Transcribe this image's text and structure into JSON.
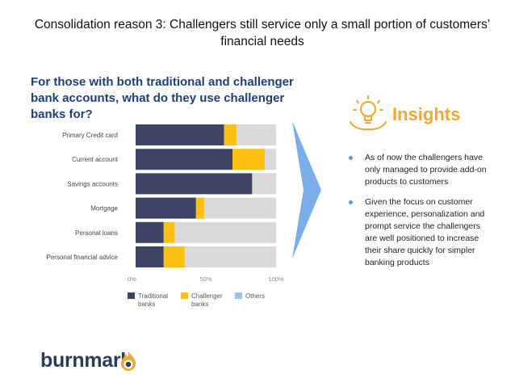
{
  "slide": {
    "title": "Consolidation reason 3: Challengers still service only a small portion of customers’ financial needs",
    "question": "For those with both traditional and challenger bank accounts, what do they use challenger banks for?"
  },
  "colors": {
    "traditional": "#3e4564",
    "challenger": "#fcc010",
    "others": "#d9d9d9",
    "legend_others": "#9dc3e6",
    "insights_accent": "#f0a830",
    "bullet": "#5b9bd5",
    "arrow": "#7aaee8"
  },
  "chart_data": {
    "type": "bar",
    "orientation": "horizontal",
    "stacked": true,
    "categories": [
      "Primary Credit card",
      "Current account",
      "Savings accounts",
      "Mortgage",
      "Personal loans",
      "Personal financial advice"
    ],
    "series": [
      {
        "name": "Traditional banks",
        "values": [
          63,
          69,
          83,
          43,
          20,
          20
        ]
      },
      {
        "name": "Challenger banks",
        "values": [
          9,
          23,
          0,
          6,
          8,
          15
        ]
      },
      {
        "name": "Others",
        "values": [
          28,
          8,
          17,
          51,
          72,
          65
        ]
      }
    ],
    "xlim": [
      0,
      100
    ],
    "tick_labels": [
      "0%",
      "50%",
      "100%"
    ],
    "tick_values": [
      0,
      50,
      100
    ],
    "legend": [
      "Traditional banks",
      "Challenger banks",
      "Others"
    ],
    "legend_placement": "bottom"
  },
  "insights": {
    "title": "Insights",
    "icon": "lightbulb-icon",
    "bullets": [
      "As of now the challengers have only managed to provide add-on products to customers",
      "Given the focus on customer experience, personalization and prompt service the challengers are well positioned to increase their share quickly for simpler banking products"
    ]
  },
  "logo": {
    "text": "burnmark",
    "icon": "burnmark-flame-icon"
  }
}
